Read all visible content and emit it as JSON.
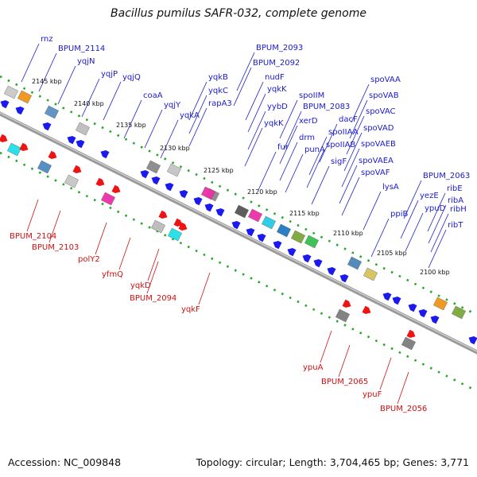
{
  "title": "Bacillus pumilus SAFR-032, complete genome",
  "footer": {
    "accession": "Accession: NC_009848",
    "topology": "Topology: circular; Length: 3,704,465 bp; Genes: 3,771"
  },
  "colors": {
    "forward_label": "#1a1acc",
    "reverse_label": "#cc1111",
    "backbone": "#888888",
    "ticks": "#22aa22"
  },
  "kbp_ticks": [
    "2145 kbp",
    "2140 kbp",
    "2135 kbp",
    "2130 kbp",
    "2125 kbp",
    "2120 kbp",
    "2115 kbp",
    "2110 kbp",
    "2105 kbp",
    "2100 kbp"
  ],
  "forward_genes": [
    "rnz",
    "BPUM_2114",
    "yqjN",
    "yqjP",
    "yqjQ",
    "coaA",
    "yqjY",
    "yqkA",
    "yqkB",
    "yqkC",
    "rapA3",
    "BPUM_2093",
    "BPUM_2092",
    "nudF",
    "yqkK",
    "yybD",
    "yqkK",
    "fur",
    "spoIIM",
    "BPUM_2083",
    "xerD",
    "drm",
    "punA",
    "dacF",
    "spoIIAA",
    "spoIIAB",
    "sigF",
    "spoVAA",
    "spoVAB",
    "spoVAC",
    "spoVAD",
    "spoVAEB",
    "spoVAEA",
    "spoVAF",
    "lysA",
    "ppiB",
    "BPUM_2063",
    "yezE",
    "ypuD",
    "ribE",
    "ribA",
    "ribH",
    "ribT"
  ],
  "reverse_genes": [
    "BPUM_2104",
    "BPUM_2103",
    "polY2",
    "yfmQ",
    "yqkD",
    "BPUM_2094",
    "yqkF",
    "ypuA",
    "BPUM_2065",
    "ypuF",
    "BPUM_2056"
  ]
}
